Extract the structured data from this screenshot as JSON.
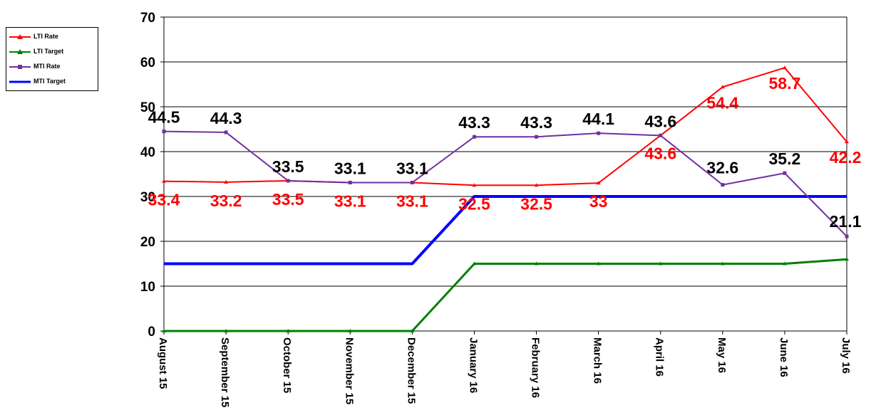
{
  "chart_data": {
    "type": "line",
    "title": "",
    "xlabel": "",
    "ylabel": "",
    "ylim": [
      0,
      70
    ],
    "yticks": [
      0,
      10,
      20,
      30,
      40,
      50,
      60,
      70
    ],
    "grid": "horizontal",
    "legend": "left",
    "categories": [
      "August 15",
      "September 15",
      "October 15",
      "November 15",
      "December 15",
      "January 16",
      "February 16",
      "March 16",
      "April 16",
      "May 16",
      "June 16",
      "July 16"
    ],
    "series": [
      {
        "name": "LTI Rate",
        "color": "#ff0000",
        "marker": "triangle",
        "values": [
          33.4,
          33.2,
          33.5,
          33.1,
          33.1,
          32.5,
          32.5,
          33,
          43.6,
          54.4,
          58.7,
          42.2
        ],
        "labels": [
          "33.4",
          "33.2",
          "33.5",
          "33.1",
          "33.1",
          "32.5",
          "32.5",
          "33",
          "43.6",
          "54.4",
          "58.7",
          "42.2"
        ]
      },
      {
        "name": "LTI Target",
        "color": "#008000",
        "marker": "triangle",
        "values": [
          0,
          0,
          0,
          0,
          0,
          15,
          15,
          15,
          15,
          15,
          15,
          16
        ]
      },
      {
        "name": "MTI Rate",
        "color": "#7030a0",
        "marker": "square",
        "values": [
          44.5,
          44.3,
          33.5,
          33.1,
          33.1,
          43.3,
          43.3,
          44.1,
          43.6,
          32.6,
          35.2,
          21.1
        ],
        "labels": [
          "44.5",
          "44.3",
          "33.5",
          "33.1",
          "33.1",
          "43.3",
          "43.3",
          "44.1",
          "43.6",
          "32.6",
          "35.2",
          "21.1"
        ]
      },
      {
        "name": "MTI Target",
        "color": "#0000ff",
        "marker": "none",
        "values": [
          15,
          15,
          15,
          15,
          15,
          30,
          30,
          30,
          30,
          30,
          30,
          30
        ]
      }
    ]
  }
}
